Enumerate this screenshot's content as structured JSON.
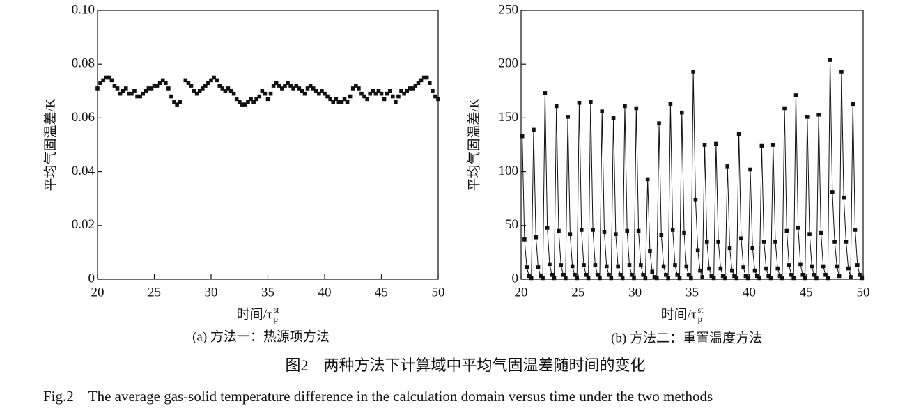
{
  "chart_data": [
    {
      "type": "scatter",
      "subcaption": "(a) 方法一：热源项方法",
      "ylabel": "平均气固温差/K",
      "xlabel": "时间/τ",
      "xlabel_sub": "p",
      "xlabel_sup": "st",
      "color": "#111111",
      "xlim": [
        20,
        50
      ],
      "xticks": [
        20,
        25,
        30,
        35,
        40,
        45,
        50
      ],
      "ylim": [
        0,
        0.1
      ],
      "yticks": [
        0,
        0.02,
        0.04,
        0.06,
        0.08,
        {
          "value": 0.1,
          "label": "0.10"
        }
      ],
      "x": [
        20,
        20.25,
        20.5,
        20.75,
        21,
        21.25,
        21.5,
        21.75,
        22,
        22.25,
        22.5,
        22.75,
        23,
        23.25,
        23.5,
        23.75,
        24,
        24.25,
        24.5,
        24.75,
        25,
        25.25,
        25.5,
        25.75,
        26,
        26.25,
        26.5,
        26.75,
        27,
        27.25,
        27.75,
        28,
        28.25,
        28.5,
        28.75,
        29,
        29.25,
        29.5,
        29.75,
        30,
        30.25,
        30.5,
        30.75,
        31,
        31.25,
        31.5,
        31.75,
        32,
        32.25,
        32.5,
        32.75,
        33,
        33.25,
        33.5,
        33.75,
        34,
        34.25,
        34.5,
        34.75,
        35,
        35.25,
        35.5,
        35.75,
        36,
        36.25,
        36.5,
        36.75,
        37,
        37.25,
        37.5,
        37.75,
        38,
        38.25,
        38.5,
        38.75,
        39,
        39.25,
        39.5,
        39.75,
        40,
        40.25,
        40.5,
        40.75,
        41,
        41.25,
        41.5,
        41.75,
        42,
        42.25,
        42.5,
        42.75,
        43,
        43.25,
        43.5,
        43.75,
        44,
        44.25,
        44.5,
        44.75,
        45,
        45.25,
        45.5,
        45.75,
        46,
        46.25,
        46.5,
        46.75,
        47,
        47.25,
        47.5,
        47.75,
        48,
        48.25,
        48.5,
        48.75,
        49,
        49.25,
        49.5,
        49.75,
        50
      ],
      "values": [
        0.071,
        0.073,
        0.074,
        0.075,
        0.075,
        0.074,
        0.072,
        0.071,
        0.069,
        0.07,
        0.071,
        0.069,
        0.069,
        0.07,
        0.068,
        0.068,
        0.069,
        0.07,
        0.071,
        0.071,
        0.072,
        0.072,
        0.073,
        0.074,
        0.073,
        0.071,
        0.068,
        0.066,
        0.065,
        0.066,
        0.074,
        0.073,
        0.072,
        0.07,
        0.069,
        0.07,
        0.071,
        0.072,
        0.073,
        0.074,
        0.075,
        0.074,
        0.072,
        0.071,
        0.07,
        0.071,
        0.07,
        0.069,
        0.067,
        0.066,
        0.065,
        0.065,
        0.066,
        0.067,
        0.066,
        0.067,
        0.068,
        0.07,
        0.069,
        0.067,
        0.069,
        0.072,
        0.073,
        0.072,
        0.071,
        0.072,
        0.073,
        0.072,
        0.071,
        0.072,
        0.071,
        0.07,
        0.069,
        0.071,
        0.072,
        0.071,
        0.07,
        0.069,
        0.07,
        0.069,
        0.068,
        0.067,
        0.066,
        0.067,
        0.066,
        0.066,
        0.067,
        0.066,
        0.068,
        0.071,
        0.072,
        0.071,
        0.069,
        0.068,
        0.067,
        0.069,
        0.07,
        0.069,
        0.07,
        0.069,
        0.067,
        0.069,
        0.07,
        0.068,
        0.066,
        0.068,
        0.07,
        0.069,
        0.07,
        0.071,
        0.071,
        0.072,
        0.073,
        0.074,
        0.075,
        0.075,
        0.073,
        0.07,
        0.068,
        0.067
      ]
    },
    {
      "type": "line",
      "subcaption": "(b) 方法二：重置温度方法",
      "ylabel": "平均气固温差/K",
      "xlabel": "时间/τ",
      "xlabel_sub": "p",
      "xlabel_sup": "st",
      "color": "#111111",
      "xlim": [
        20,
        50
      ],
      "xticks": [
        20,
        25,
        30,
        35,
        40,
        45,
        50
      ],
      "ylim": [
        0,
        250
      ],
      "yticks": [
        0,
        50,
        100,
        150,
        200,
        250
      ],
      "x": [
        20.1,
        20.3,
        20.5,
        20.7,
        20.9,
        21.1,
        21.3,
        21.5,
        21.7,
        21.9,
        22.1,
        22.3,
        22.5,
        22.7,
        22.9,
        23.1,
        23.3,
        23.5,
        23.7,
        23.9,
        24.1,
        24.3,
        24.5,
        24.7,
        24.9,
        25.1,
        25.3,
        25.5,
        25.7,
        25.9,
        26.1,
        26.3,
        26.5,
        26.7,
        26.9,
        27.1,
        27.3,
        27.5,
        27.7,
        27.9,
        28.1,
        28.3,
        28.5,
        28.7,
        28.9,
        29.1,
        29.3,
        29.5,
        29.7,
        29.9,
        30.1,
        30.3,
        30.5,
        30.7,
        30.9,
        31.1,
        31.3,
        31.5,
        31.7,
        31.9,
        32.1,
        32.3,
        32.5,
        32.7,
        32.9,
        33.1,
        33.3,
        33.5,
        33.7,
        33.9,
        34.1,
        34.3,
        34.5,
        34.7,
        34.9,
        35.1,
        35.3,
        35.5,
        35.7,
        35.9,
        36.1,
        36.3,
        36.5,
        36.7,
        36.9,
        37.1,
        37.3,
        37.5,
        37.7,
        37.9,
        38.1,
        38.3,
        38.5,
        38.7,
        38.9,
        39.1,
        39.3,
        39.5,
        39.7,
        39.9,
        40.1,
        40.3,
        40.5,
        40.7,
        40.9,
        41.1,
        41.3,
        41.5,
        41.7,
        41.9,
        42.1,
        42.3,
        42.5,
        42.7,
        42.9,
        43.1,
        43.3,
        43.5,
        43.7,
        43.9,
        44.1,
        44.3,
        44.5,
        44.7,
        44.9,
        45.1,
        45.3,
        45.5,
        45.7,
        45.9,
        46.1,
        46.3,
        46.5,
        46.7,
        46.9,
        47.1,
        47.3,
        47.5,
        47.7,
        47.9,
        48.1,
        48.3,
        48.5,
        48.7,
        48.9,
        49.1,
        49.3,
        49.5,
        49.7,
        49.9
      ],
      "values": [
        133,
        37,
        11,
        3,
        1,
        139,
        39,
        11,
        3,
        1,
        173,
        48,
        14,
        4,
        1,
        161,
        45,
        13,
        4,
        1,
        151,
        42,
        12,
        4,
        1,
        164,
        46,
        13,
        4,
        1,
        165,
        46,
        13,
        4,
        1,
        156,
        44,
        12,
        4,
        1,
        150,
        42,
        12,
        4,
        1,
        161,
        45,
        13,
        4,
        1,
        159,
        45,
        13,
        4,
        1,
        93,
        26,
        7,
        2,
        1,
        145,
        41,
        12,
        4,
        1,
        163,
        46,
        13,
        4,
        1,
        155,
        43,
        12,
        4,
        1,
        193,
        74,
        27,
        8,
        2,
        125,
        35,
        10,
        3,
        1,
        126,
        35,
        10,
        3,
        1,
        105,
        29,
        8,
        3,
        1,
        135,
        38,
        11,
        3,
        1,
        102,
        29,
        8,
        3,
        1,
        124,
        35,
        10,
        3,
        1,
        125,
        35,
        10,
        3,
        1,
        159,
        45,
        13,
        4,
        1,
        171,
        48,
        14,
        4,
        1,
        151,
        42,
        12,
        4,
        1,
        153,
        43,
        12,
        4,
        1,
        204,
        81,
        35,
        12,
        3,
        193,
        76,
        35,
        10,
        2,
        163,
        46,
        13,
        4,
        1
      ]
    }
  ],
  "caption": {
    "cn": "图2　两种方法下计算域中平均气固温差随时间的变化",
    "en": "Fig.2　The average gas-solid temperature difference in the calculation domain versus time under the two methods"
  }
}
